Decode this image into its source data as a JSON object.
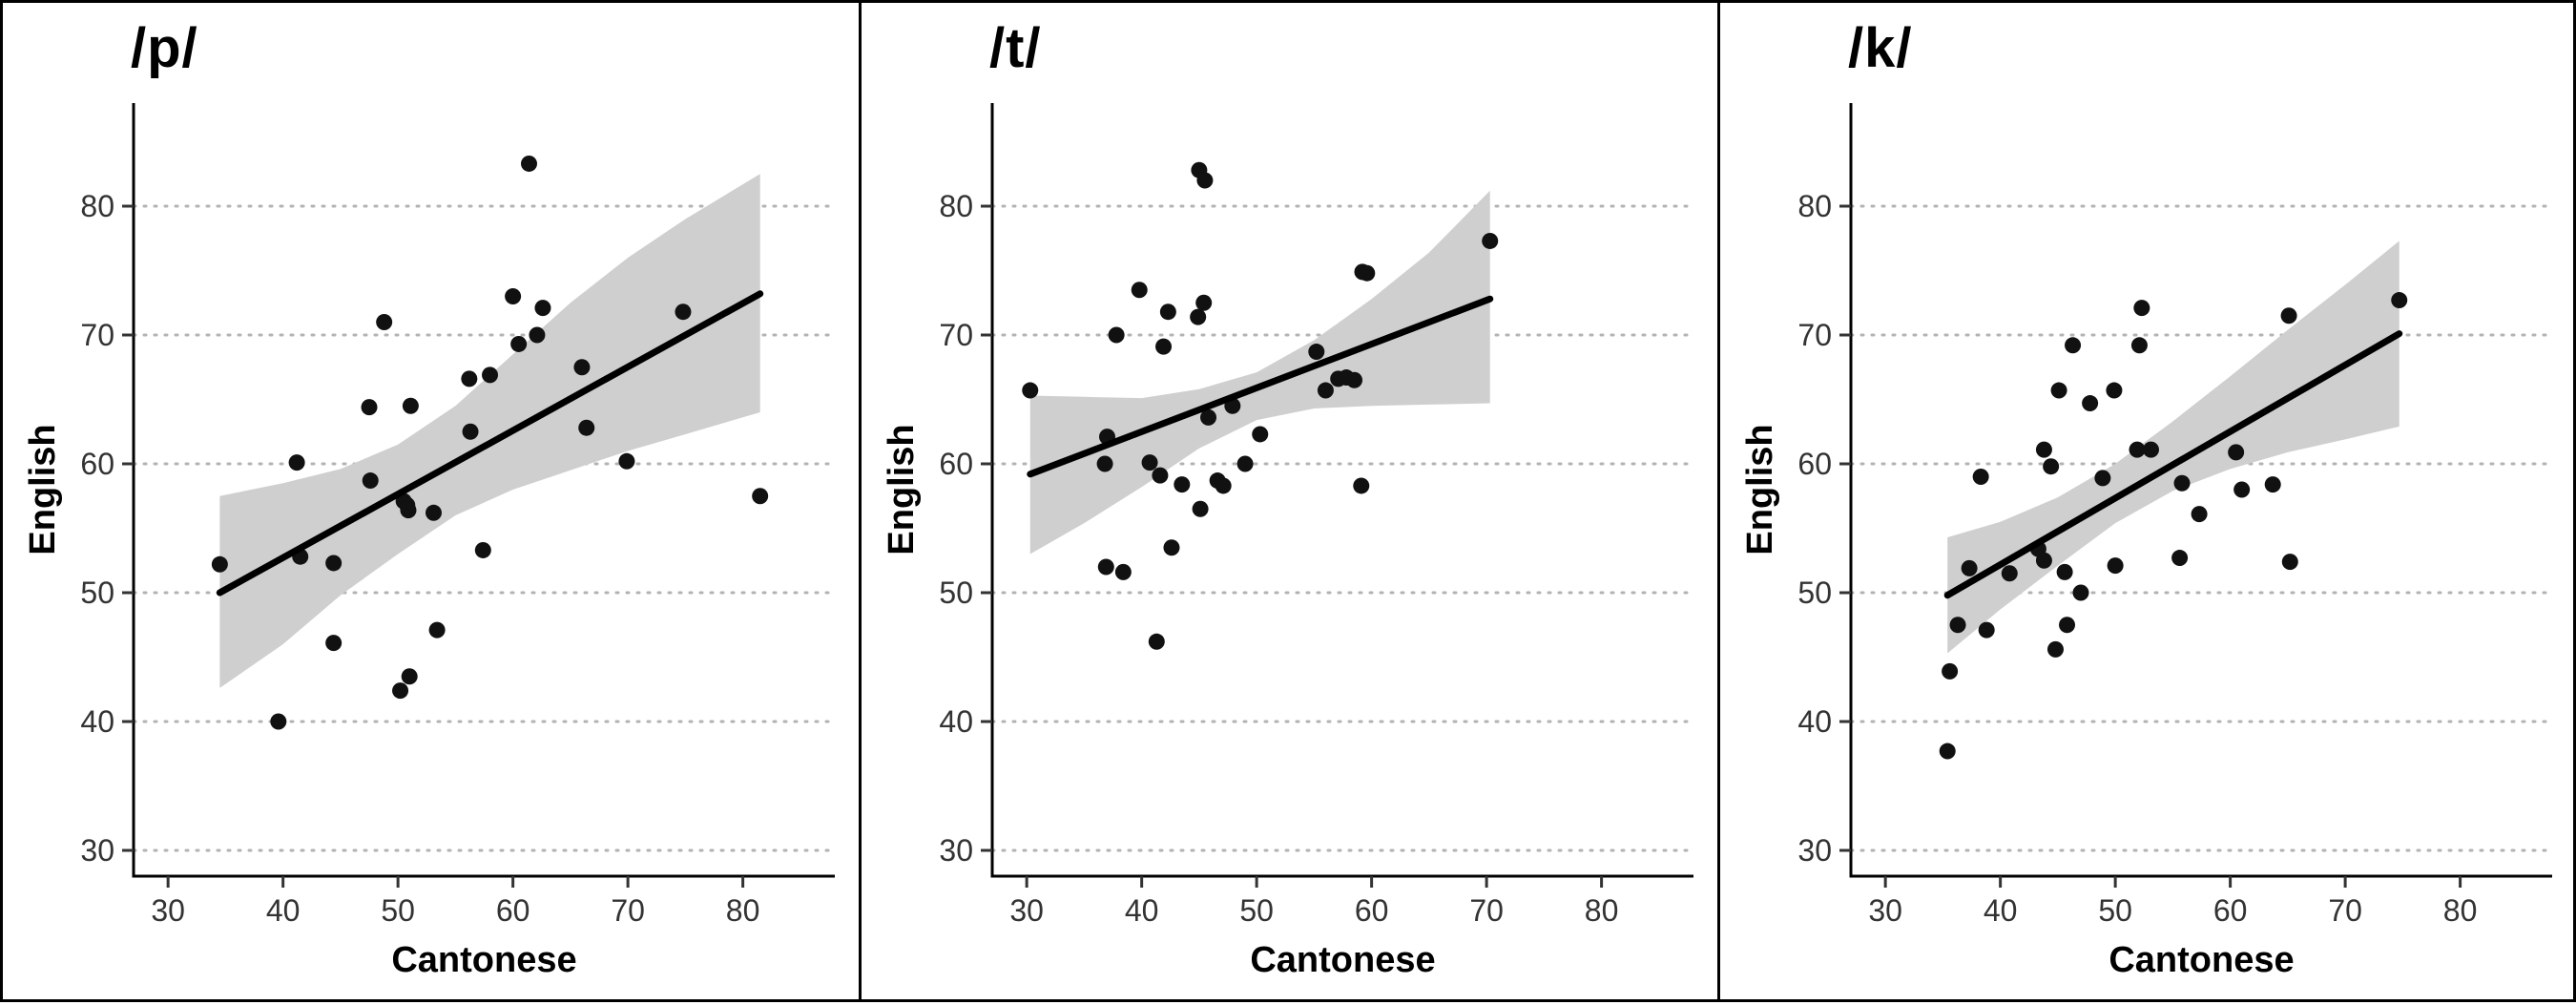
{
  "chart_data": [
    {
      "type": "scatter",
      "title": "/p/",
      "xlabel": "Cantonese",
      "ylabel": "English",
      "xlim": [
        27,
        88
      ],
      "ylim": [
        28,
        88
      ],
      "xticks": [
        30,
        40,
        50,
        60,
        70,
        80
      ],
      "yticks": [
        30,
        40,
        50,
        60,
        70,
        80
      ],
      "grid": "horizontal dotted",
      "fit": {
        "x": [
          34.5,
          81.5
        ],
        "y": [
          50,
          73.2
        ]
      },
      "band": {
        "x": [
          34.5,
          40,
          45,
          50,
          55,
          60,
          65,
          70,
          75,
          81.5
        ],
        "upper": [
          57.5,
          58.5,
          59.6,
          61.5,
          64.5,
          68.5,
          72.5,
          76.0,
          79.0,
          82.5
        ],
        "lower": [
          42.6,
          46.0,
          49.8,
          53.0,
          56.0,
          58.0,
          59.5,
          61.0,
          62.3,
          64.0
        ]
      },
      "points": [
        [
          34.5,
          52.2
        ],
        [
          39.6,
          40.0
        ],
        [
          41.2,
          60.1
        ],
        [
          41.5,
          52.8
        ],
        [
          44.4,
          52.3
        ],
        [
          44.4,
          46.1
        ],
        [
          47.5,
          64.4
        ],
        [
          47.6,
          58.7
        ],
        [
          48.8,
          71.0
        ],
        [
          50.2,
          42.4
        ],
        [
          50.5,
          57.1
        ],
        [
          50.8,
          56.8
        ],
        [
          50.9,
          56.4
        ],
        [
          51.0,
          43.5
        ],
        [
          51.1,
          64.5
        ],
        [
          53.1,
          56.2
        ],
        [
          53.4,
          47.1
        ],
        [
          56.2,
          66.6
        ],
        [
          56.3,
          62.5
        ],
        [
          57.4,
          53.3
        ],
        [
          58.0,
          66.9
        ],
        [
          60.0,
          73.0
        ],
        [
          60.5,
          69.3
        ],
        [
          61.4,
          83.3
        ],
        [
          62.1,
          70.0
        ],
        [
          62.6,
          72.1
        ],
        [
          66.0,
          67.5
        ],
        [
          66.4,
          62.8
        ],
        [
          69.9,
          60.2
        ],
        [
          74.8,
          71.8
        ],
        [
          81.5,
          57.5
        ]
      ]
    },
    {
      "type": "scatter",
      "title": "/t/",
      "xlabel": "Cantonese",
      "ylabel": "English",
      "xlim": [
        27,
        88
      ],
      "ylim": [
        28,
        88
      ],
      "xticks": [
        30,
        40,
        50,
        60,
        70,
        80
      ],
      "yticks": [
        30,
        40,
        50,
        60,
        70,
        80
      ],
      "grid": "horizontal dotted",
      "fit": {
        "x": [
          30.3,
          70.3
        ],
        "y": [
          59.2,
          72.8
        ]
      },
      "band": {
        "x": [
          30.3,
          35,
          40,
          45,
          50,
          55,
          60,
          65,
          70.3
        ],
        "upper": [
          65.3,
          65.2,
          65.1,
          65.8,
          67.1,
          69.6,
          72.8,
          76.4,
          81.2
        ],
        "lower": [
          53.0,
          55.4,
          58.2,
          61.2,
          63.4,
          64.3,
          64.5,
          64.6,
          64.7
        ]
      },
      "points": [
        [
          30.3,
          65.7
        ],
        [
          36.8,
          60.0
        ],
        [
          36.9,
          52.0
        ],
        [
          37.0,
          62.1
        ],
        [
          37.8,
          70.0
        ],
        [
          38.4,
          51.6
        ],
        [
          39.8,
          73.5
        ],
        [
          40.7,
          60.1
        ],
        [
          41.3,
          46.2
        ],
        [
          41.6,
          59.1
        ],
        [
          41.9,
          69.1
        ],
        [
          42.3,
          71.8
        ],
        [
          42.6,
          53.5
        ],
        [
          43.5,
          58.4
        ],
        [
          44.9,
          71.4
        ],
        [
          45.0,
          82.8
        ],
        [
          45.1,
          56.5
        ],
        [
          45.4,
          72.5
        ],
        [
          45.5,
          82.0
        ],
        [
          45.8,
          63.6
        ],
        [
          46.6,
          58.7
        ],
        [
          47.1,
          58.3
        ],
        [
          47.9,
          64.5
        ],
        [
          49.0,
          60.0
        ],
        [
          50.3,
          62.3
        ],
        [
          55.2,
          68.7
        ],
        [
          56.0,
          65.7
        ],
        [
          57.1,
          66.6
        ],
        [
          57.8,
          66.7
        ],
        [
          58.5,
          66.5
        ],
        [
          59.1,
          58.3
        ],
        [
          59.2,
          74.9
        ],
        [
          59.6,
          74.8
        ],
        [
          70.3,
          77.3
        ]
      ]
    },
    {
      "type": "scatter",
      "title": "/k/",
      "xlabel": "Cantonese",
      "ylabel": "English",
      "xlim": [
        27,
        88
      ],
      "ylim": [
        28,
        88
      ],
      "xticks": [
        30,
        40,
        50,
        60,
        70,
        80
      ],
      "yticks": [
        30,
        40,
        50,
        60,
        70,
        80
      ],
      "grid": "horizontal dotted",
      "fit": {
        "x": [
          35.4,
          74.7
        ],
        "y": [
          49.8,
          70.1
        ]
      },
      "band": {
        "x": [
          35.4,
          40,
          45,
          50,
          55,
          60,
          65,
          70,
          74.7
        ],
        "upper": [
          54.3,
          55.5,
          57.4,
          60.0,
          63.3,
          66.8,
          70.4,
          73.9,
          77.3
        ],
        "lower": [
          45.3,
          48.7,
          52.1,
          55.4,
          57.9,
          59.6,
          60.9,
          61.9,
          62.9
        ]
      },
      "points": [
        [
          35.4,
          37.7
        ],
        [
          35.6,
          43.9
        ],
        [
          36.3,
          47.5
        ],
        [
          37.3,
          51.9
        ],
        [
          38.3,
          59.0
        ],
        [
          38.8,
          47.1
        ],
        [
          40.8,
          51.5
        ],
        [
          43.3,
          53.4
        ],
        [
          43.8,
          61.1
        ],
        [
          43.8,
          52.5
        ],
        [
          44.4,
          59.8
        ],
        [
          44.8,
          45.6
        ],
        [
          45.1,
          65.7
        ],
        [
          45.6,
          51.6
        ],
        [
          45.8,
          47.5
        ],
        [
          46.3,
          69.2
        ],
        [
          47.0,
          50.0
        ],
        [
          47.8,
          64.7
        ],
        [
          48.9,
          58.9
        ],
        [
          49.9,
          65.7
        ],
        [
          50.0,
          52.1
        ],
        [
          51.9,
          61.1
        ],
        [
          52.1,
          69.2
        ],
        [
          52.3,
          72.1
        ],
        [
          53.1,
          61.1
        ],
        [
          55.6,
          52.7
        ],
        [
          55.8,
          58.5
        ],
        [
          57.3,
          56.1
        ],
        [
          60.5,
          60.9
        ],
        [
          61.0,
          58.0
        ],
        [
          63.7,
          58.4
        ],
        [
          65.1,
          71.5
        ],
        [
          65.2,
          52.4
        ],
        [
          74.7,
          72.7
        ]
      ]
    }
  ]
}
